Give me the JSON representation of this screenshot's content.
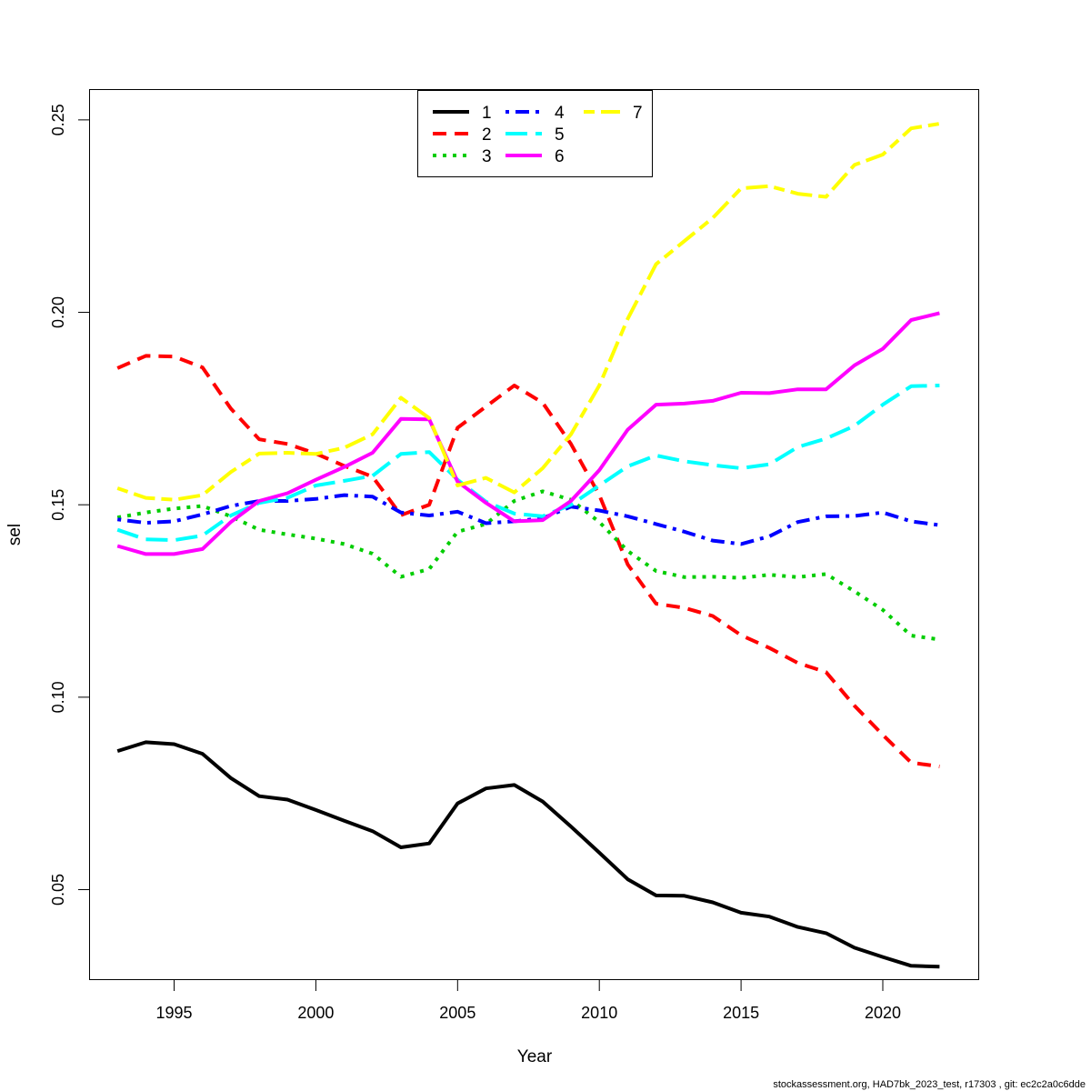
{
  "chart_data": {
    "type": "line",
    "xlabel": "Year",
    "ylabel": "sel",
    "xlim": [
      1992.0,
      2023.4
    ],
    "ylim": [
      0.0265,
      0.258
    ],
    "x_ticks": [
      1995,
      2000,
      2005,
      2010,
      2015,
      2020
    ],
    "y_ticks": [
      0.05,
      0.1,
      0.15,
      0.2,
      0.25
    ],
    "y_tick_labels": [
      "0.05",
      "0.10",
      "0.15",
      "0.20",
      "0.25"
    ],
    "legend_position": "top-center",
    "x": [
      1993,
      1994,
      1995,
      1996,
      1997,
      1998,
      1999,
      2000,
      2001,
      2002,
      2003,
      2004,
      2005,
      2006,
      2007,
      2008,
      2009,
      2010,
      2011,
      2012,
      2013,
      2014,
      2015,
      2016,
      2017,
      2018,
      2019,
      2020,
      2021,
      2022
    ],
    "series": [
      {
        "name": "1",
        "color": "#000000",
        "dash": "solid",
        "values": [
          0.086,
          0.0883,
          0.0878,
          0.0853,
          0.079,
          0.0743,
          0.0734,
          0.0707,
          0.0679,
          0.0652,
          0.061,
          0.062,
          0.0724,
          0.0763,
          0.0772,
          0.0729,
          0.0664,
          0.0596,
          0.0527,
          0.0485,
          0.0484,
          0.0467,
          0.044,
          0.043,
          0.0403,
          0.0387,
          0.0349,
          0.0325,
          0.0302,
          0.03
        ]
      },
      {
        "name": "2",
        "color": "#ff0000",
        "dash": "dashed",
        "values": [
          0.1855,
          0.1887,
          0.1885,
          0.1857,
          0.175,
          0.167,
          0.1658,
          0.1633,
          0.1601,
          0.1573,
          0.1473,
          0.15,
          0.17,
          0.1755,
          0.181,
          0.1765,
          0.1658,
          0.1525,
          0.1345,
          0.1243,
          0.1232,
          0.1211,
          0.1161,
          0.1128,
          0.1089,
          0.1065,
          0.0978,
          0.0902,
          0.083,
          0.082
        ]
      },
      {
        "name": "3",
        "color": "#00cd00",
        "dash": "dotted",
        "values": [
          0.1467,
          0.148,
          0.149,
          0.1497,
          0.147,
          0.1435,
          0.1423,
          0.1412,
          0.1398,
          0.1373,
          0.1313,
          0.1333,
          0.143,
          0.145,
          0.151,
          0.1535,
          0.1513,
          0.1455,
          0.138,
          0.1328,
          0.1312,
          0.1313,
          0.131,
          0.1318,
          0.1312,
          0.132,
          0.1275,
          0.1227,
          0.116,
          0.115
        ]
      },
      {
        "name": "4",
        "color": "#0000ff",
        "dash": "dotdash",
        "values": [
          0.1462,
          0.1453,
          0.1457,
          0.1475,
          0.1497,
          0.151,
          0.151,
          0.1515,
          0.1525,
          0.1521,
          0.148,
          0.1472,
          0.1482,
          0.1452,
          0.1457,
          0.1465,
          0.1495,
          0.1485,
          0.147,
          0.145,
          0.143,
          0.1407,
          0.1398,
          0.1418,
          0.1455,
          0.147,
          0.1471,
          0.148,
          0.1457,
          0.1447
        ]
      },
      {
        "name": "5",
        "color": "#00ffff",
        "dash": "longdash",
        "values": [
          0.1435,
          0.141,
          0.1408,
          0.142,
          0.1472,
          0.1505,
          0.1518,
          0.155,
          0.1562,
          0.1575,
          0.1632,
          0.1637,
          0.1565,
          0.1508,
          0.1477,
          0.147,
          0.15,
          0.155,
          0.16,
          0.1628,
          0.1613,
          0.1603,
          0.1595,
          0.1605,
          0.165,
          0.1672,
          0.1705,
          0.176,
          0.1808,
          0.181
        ]
      },
      {
        "name": "6",
        "color": "#ff00ff",
        "dash": "solid",
        "values": [
          0.1393,
          0.1372,
          0.1372,
          0.1385,
          0.1455,
          0.151,
          0.153,
          0.1565,
          0.1598,
          0.1635,
          0.1723,
          0.1722,
          0.156,
          0.1505,
          0.1457,
          0.146,
          0.151,
          0.159,
          0.1695,
          0.176,
          0.1763,
          0.177,
          0.1791,
          0.179,
          0.18,
          0.18,
          0.1862,
          0.1905,
          0.198,
          0.1998
        ]
      },
      {
        "name": "7",
        "color": "#ffff00",
        "dash": "twodash",
        "values": [
          0.1543,
          0.1518,
          0.1513,
          0.1525,
          0.1585,
          0.1633,
          0.1635,
          0.1632,
          0.1648,
          0.1683,
          0.1778,
          0.1725,
          0.155,
          0.157,
          0.1532,
          0.1595,
          0.1683,
          0.181,
          0.1983,
          0.2125,
          0.2185,
          0.2245,
          0.2322,
          0.2328,
          0.2308,
          0.23,
          0.2383,
          0.241,
          0.2478,
          0.249
        ]
      }
    ]
  },
  "footer_note": "stockassessment.org, HAD7bk_2023_test, r17303 , git: ec2c2a0c6dde"
}
